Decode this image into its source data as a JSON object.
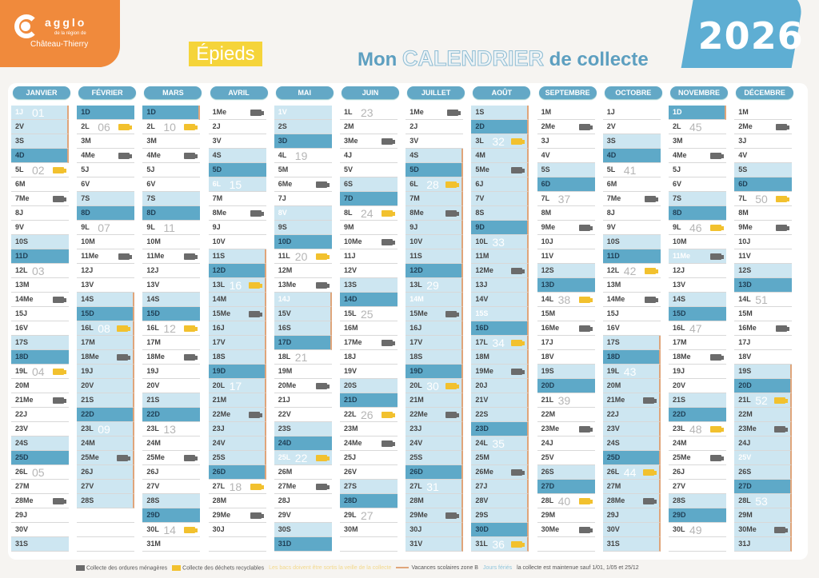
{
  "logo": {
    "name": "agglo",
    "sub": "de la région de",
    "city": "Château-Thierry"
  },
  "commune": "Épieds",
  "title": {
    "prefix": "Mon",
    "main": "CALENDRIER",
    "suffix": "de collecte"
  },
  "year": "2026",
  "colors": {
    "orange": "#f08a3c",
    "blue": "#5ea9c8",
    "light_blue": "#cde6f1",
    "yellow": "#f2c12e",
    "grey": "#6b6b6b"
  },
  "icons": {
    "ordures": "garbage-truck-icon",
    "recyclables": "recycling-truck-icon"
  },
  "months": [
    {
      "name": "JANVIER",
      "days": [
        "1J",
        "2V",
        "3S",
        "4D",
        "5L",
        "6M",
        "7Me",
        "8J",
        "9V",
        "10S",
        "11D",
        "12L",
        "13M",
        "14Me",
        "15J",
        "16V",
        "17S",
        "18D",
        "19L",
        "20M",
        "21Me",
        "22J",
        "23V",
        "24S",
        "25D",
        "26L",
        "27M",
        "28Me",
        "29J",
        "30V",
        "31S"
      ],
      "weeks": {
        "1": "01",
        "5": "02",
        "12": "03",
        "19": "04",
        "26": "05"
      },
      "ordures": [
        7,
        14,
        21,
        28
      ],
      "recyclables": [
        5,
        19
      ],
      "vacances": [
        1,
        2,
        3,
        4
      ],
      "feries": [
        1
      ]
    },
    {
      "name": "FÉVRIER",
      "days": [
        "1D",
        "2L",
        "3M",
        "4Me",
        "5J",
        "6V",
        "7S",
        "8D",
        "9L",
        "10M",
        "11Me",
        "12J",
        "13V",
        "14S",
        "15D",
        "16L",
        "17M",
        "18Me",
        "19J",
        "20V",
        "21S",
        "22D",
        "23L",
        "24M",
        "25Me",
        "26J",
        "27V",
        "28S"
      ],
      "weeks": {
        "2": "06",
        "9": "07",
        "16": "08",
        "23": "09"
      },
      "ordures": [
        4,
        11,
        18,
        25
      ],
      "recyclables": [
        2,
        16
      ],
      "vacances": [
        14,
        15,
        16,
        17,
        18,
        19,
        20,
        21,
        22,
        23,
        24,
        25,
        26,
        27,
        28
      ],
      "feries": []
    },
    {
      "name": "MARS",
      "days": [
        "1D",
        "2L",
        "3M",
        "4Me",
        "5J",
        "6V",
        "7S",
        "8D",
        "9L",
        "10M",
        "11Me",
        "12J",
        "13V",
        "14S",
        "15D",
        "16L",
        "17M",
        "18Me",
        "19J",
        "20V",
        "21S",
        "22D",
        "23L",
        "24M",
        "25Me",
        "26J",
        "27V",
        "28S",
        "29D",
        "30L",
        "31M"
      ],
      "weeks": {
        "2": "10",
        "9": "11",
        "16": "12",
        "23": "13",
        "30": "14"
      },
      "ordures": [
        4,
        11,
        18,
        25
      ],
      "recyclables": [
        2,
        16,
        30
      ],
      "vacances": [
        1
      ],
      "feries": []
    },
    {
      "name": "AVRIL",
      "days": [
        "1Me",
        "2J",
        "3V",
        "4S",
        "5D",
        "6L",
        "7M",
        "8Me",
        "9J",
        "10V",
        "11S",
        "12D",
        "13L",
        "14M",
        "15Me",
        "16J",
        "17V",
        "18S",
        "19D",
        "20L",
        "21M",
        "22Me",
        "23J",
        "24V",
        "25S",
        "26D",
        "27L",
        "28M",
        "29Me",
        "30J"
      ],
      "weeks": {
        "6": "15",
        "13": "16",
        "20": "17",
        "27": "18"
      },
      "ordures": [
        1,
        8,
        15,
        22,
        29
      ],
      "recyclables": [
        13,
        27
      ],
      "vacances": [
        11,
        12,
        13,
        14,
        15,
        16,
        17,
        18,
        19,
        20,
        21,
        22,
        23,
        24,
        25,
        26
      ],
      "feries": [
        6
      ]
    },
    {
      "name": "MAI",
      "days": [
        "1V",
        "2S",
        "3D",
        "4L",
        "5M",
        "6Me",
        "7J",
        "8V",
        "9S",
        "10D",
        "11L",
        "12M",
        "13Me",
        "14J",
        "15V",
        "16S",
        "17D",
        "18L",
        "19M",
        "20Me",
        "21J",
        "22V",
        "23S",
        "24D",
        "25L",
        "26M",
        "27Me",
        "28J",
        "29V",
        "30S",
        "31D"
      ],
      "weeks": {
        "4": "19",
        "11": "20",
        "18": "21",
        "25": "22"
      },
      "ordures": [
        6,
        13,
        20,
        27
      ],
      "recyclables": [
        11,
        25
      ],
      "vacances": [
        14,
        15,
        16,
        17
      ],
      "feries": [
        1,
        8,
        14,
        25
      ]
    },
    {
      "name": "JUIN",
      "days": [
        "1L",
        "2M",
        "3Me",
        "4J",
        "5V",
        "6S",
        "7D",
        "8L",
        "9M",
        "10Me",
        "11J",
        "12V",
        "13S",
        "14D",
        "15L",
        "16M",
        "17Me",
        "18J",
        "19V",
        "20S",
        "21D",
        "22L",
        "23M",
        "24Me",
        "25J",
        "26V",
        "27S",
        "28D",
        "29L",
        "30M"
      ],
      "weeks": {
        "1": "23",
        "8": "24",
        "15": "25",
        "22": "26",
        "29": "27"
      },
      "ordures": [
        3,
        10,
        17,
        24
      ],
      "recyclables": [
        8,
        22
      ],
      "vacances": [],
      "feries": []
    },
    {
      "name": "JUILLET",
      "days": [
        "1Me",
        "2J",
        "3V",
        "4S",
        "5D",
        "6L",
        "7M",
        "8Me",
        "9J",
        "10V",
        "11S",
        "12D",
        "13L",
        "14M",
        "15Me",
        "16J",
        "17V",
        "18S",
        "19D",
        "20L",
        "21M",
        "22Me",
        "23J",
        "24V",
        "25S",
        "26D",
        "27L",
        "28M",
        "29Me",
        "30J",
        "31V"
      ],
      "weeks": {
        "6": "28",
        "13": "29",
        "20": "30",
        "27": "31"
      },
      "ordures": [
        1,
        8,
        15,
        22,
        29
      ],
      "recyclables": [
        6,
        20
      ],
      "vacances": [
        4,
        5,
        6,
        7,
        8,
        9,
        10,
        11,
        12,
        13,
        14,
        15,
        16,
        17,
        18,
        19,
        20,
        21,
        22,
        23,
        24,
        25,
        26,
        27,
        28,
        29,
        30,
        31
      ],
      "feries": [
        14
      ]
    },
    {
      "name": "AOÛT",
      "days": [
        "1S",
        "2D",
        "3L",
        "4M",
        "5Me",
        "6J",
        "7V",
        "8S",
        "9D",
        "10L",
        "11M",
        "12Me",
        "13J",
        "14V",
        "15S",
        "16D",
        "17L",
        "18M",
        "19Me",
        "20J",
        "21V",
        "22S",
        "23D",
        "24L",
        "25M",
        "26Me",
        "27J",
        "28V",
        "29S",
        "30D",
        "31L"
      ],
      "weeks": {
        "3": "32",
        "10": "33",
        "17": "34",
        "24": "35",
        "31": "36"
      },
      "ordures": [
        5,
        12,
        19,
        26
      ],
      "recyclables": [
        3,
        17,
        31
      ],
      "vacances": [
        1,
        2,
        3,
        4,
        5,
        6,
        7,
        8,
        9,
        10,
        11,
        12,
        13,
        14,
        15,
        16,
        17,
        18,
        19,
        20,
        21,
        22,
        23,
        24,
        25,
        26,
        27,
        28,
        29,
        30,
        31
      ],
      "feries": [
        15
      ]
    },
    {
      "name": "SEPTEMBRE",
      "days": [
        "1M",
        "2Me",
        "3J",
        "4V",
        "5S",
        "6D",
        "7L",
        "8M",
        "9Me",
        "10J",
        "11V",
        "12S",
        "13D",
        "14L",
        "15M",
        "16Me",
        "17J",
        "18V",
        "19S",
        "20D",
        "21L",
        "22M",
        "23Me",
        "24J",
        "25V",
        "26S",
        "27D",
        "28L",
        "29M",
        "30Me"
      ],
      "weeks": {
        "7": "37",
        "14": "38",
        "21": "39",
        "28": "40"
      },
      "ordures": [
        2,
        9,
        16,
        23,
        30
      ],
      "recyclables": [
        14,
        28
      ],
      "vacances": [],
      "feries": []
    },
    {
      "name": "OCTOBRE",
      "days": [
        "1J",
        "2V",
        "3S",
        "4D",
        "5L",
        "6M",
        "7Me",
        "8J",
        "9V",
        "10S",
        "11D",
        "12L",
        "13M",
        "14Me",
        "15J",
        "16V",
        "17S",
        "18D",
        "19L",
        "20M",
        "21Me",
        "22J",
        "23V",
        "24S",
        "25D",
        "26L",
        "27M",
        "28Me",
        "29J",
        "30V",
        "31S"
      ],
      "weeks": {
        "5": "41",
        "12": "42",
        "19": "43",
        "26": "44"
      },
      "ordures": [
        7,
        14,
        21,
        28
      ],
      "recyclables": [
        12,
        26
      ],
      "vacances": [
        17,
        18,
        19,
        20,
        21,
        22,
        23,
        24,
        25,
        26,
        27,
        28,
        29,
        30,
        31
      ],
      "feries": []
    },
    {
      "name": "NOVEMBRE",
      "days": [
        "1D",
        "2L",
        "3M",
        "4Me",
        "5J",
        "6V",
        "7S",
        "8D",
        "9L",
        "10M",
        "11Me",
        "12J",
        "13V",
        "14S",
        "15D",
        "16L",
        "17M",
        "18Me",
        "19J",
        "20V",
        "21S",
        "22D",
        "23L",
        "24M",
        "25Me",
        "26J",
        "27V",
        "28S",
        "29D",
        "30L"
      ],
      "weeks": {
        "2": "45",
        "9": "46",
        "16": "47",
        "23": "48",
        "30": "49"
      },
      "ordures": [
        4,
        11,
        18,
        25
      ],
      "recyclables": [
        9,
        23
      ],
      "vacances": [
        1
      ],
      "feries": [
        1,
        11
      ]
    },
    {
      "name": "DÉCEMBRE",
      "days": [
        "1M",
        "2Me",
        "3J",
        "4V",
        "5S",
        "6D",
        "7L",
        "8M",
        "9Me",
        "10J",
        "11V",
        "12S",
        "13D",
        "14L",
        "15M",
        "16Me",
        "17J",
        "18V",
        "19S",
        "20D",
        "21L",
        "22M",
        "23Me",
        "24J",
        "25V",
        "26S",
        "27D",
        "28L",
        "29M",
        "30Me",
        "31J"
      ],
      "weeks": {
        "7": "50",
        "14": "51",
        "21": "52",
        "28": "53"
      },
      "ordures": [
        2,
        9,
        16,
        23,
        30
      ],
      "recyclables": [
        7,
        21
      ],
      "vacances": [
        19,
        20,
        21,
        22,
        23,
        24,
        25,
        26,
        27,
        28,
        29,
        30,
        31
      ],
      "feries": [
        25
      ]
    }
  ],
  "legend": {
    "ordures": "Collecte des ordures ménagères",
    "recyclables": "Collecte des déchets recyclables",
    "veille": "Les bacs doivent être sortis la veille de la collecte",
    "vacances": "Vacances scolaires zone B",
    "feries": "Jours fériés",
    "maintenue": "la collecte est maintenue sauf 1/01, 1/05 et 25/12"
  }
}
